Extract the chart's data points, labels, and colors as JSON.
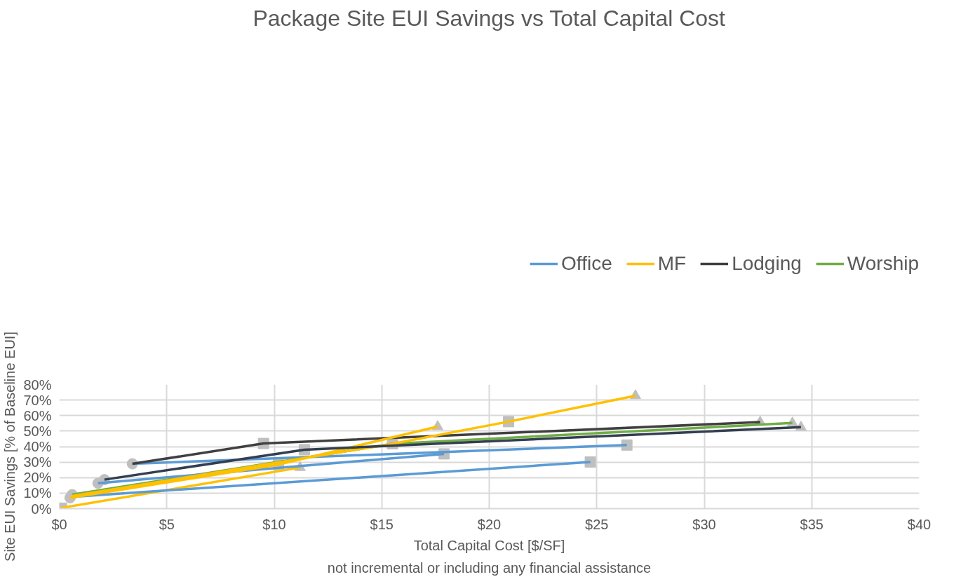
{
  "chart_data": {
    "type": "line",
    "title": "Package Site EUI Savings vs Total Capital Cost",
    "xlabel": "Total Capital Cost [$/SF]",
    "ylabel": "Site EUI Savings [% of Baseline EUI]",
    "annotations": [
      "not incremental or including any financial assistance"
    ],
    "xlim": [
      0,
      40
    ],
    "ylim": [
      0,
      80
    ],
    "xticks": [
      {
        "value": 0,
        "label": "$0"
      },
      {
        "value": 5,
        "label": "$5"
      },
      {
        "value": 10,
        "label": "$10"
      },
      {
        "value": 15,
        "label": "$15"
      },
      {
        "value": 20,
        "label": "$20"
      },
      {
        "value": 25,
        "label": "$25"
      },
      {
        "value": 30,
        "label": "$30"
      },
      {
        "value": 35,
        "label": "$35"
      },
      {
        "value": 40,
        "label": "$40"
      }
    ],
    "yticks": [
      {
        "value": 0,
        "label": "0%"
      },
      {
        "value": 10,
        "label": "10%"
      },
      {
        "value": 20,
        "label": "20%"
      },
      {
        "value": 30,
        "label": "30%"
      },
      {
        "value": 40,
        "label": "40%"
      },
      {
        "value": 50,
        "label": "50%"
      },
      {
        "value": 60,
        "label": "60%"
      },
      {
        "value": 70,
        "label": "70%"
      },
      {
        "value": 80,
        "label": "80%"
      }
    ],
    "grid": true,
    "legend": "top",
    "marker": "none",
    "line_style": "solid",
    "series": [
      {
        "name": "Office",
        "color": "#5b9bd5",
        "x": [
          3.4,
          26.4
        ],
        "values": [
          28.9,
          41.0
        ]
      },
      {
        "name": "MF",
        "color": "#ffc000",
        "x": [
          0.1,
          11.2
        ],
        "values": [
          0.5,
          26.5
        ]
      },
      {
        "name": "Lodging",
        "color": "#404040",
        "x": [
          3.4,
          9.5,
          32.6
        ],
        "values": [
          28.9,
          42.0,
          55.8
        ]
      },
      {
        "name": "Worship",
        "color": "#70ad47",
        "x": [
          0.6,
          15.5,
          34.1
        ],
        "values": [
          9.0,
          41.8,
          55.2
        ]
      },
      {
        "color": "#5b9bd5",
        "x": [
          1.8,
          17.9
        ],
        "values": [
          16.4,
          35.3
        ]
      },
      {
        "color": "#5b9bd5",
        "x": [
          0.6,
          24.7
        ],
        "values": [
          7.6,
          30.1
        ]
      },
      {
        "color": "#ffc000",
        "x": [
          0.5,
          10.2,
          17.6
        ],
        "values": [
          7.0,
          28.4,
          52.9
        ]
      },
      {
        "color": "#ffc000",
        "x": [
          0.6,
          15.5,
          20.9,
          26.8
        ],
        "values": [
          8.2,
          41.8,
          56.1,
          72.8
        ]
      },
      {
        "color": "#333f50",
        "x": [
          2.1,
          11.4,
          34.5
        ],
        "values": [
          18.7,
          38.0,
          52.5
        ]
      },
      {
        "type": "scatter",
        "marker": "circle",
        "color": "#bfbfbf",
        "x": [
          3.4,
          1.8,
          2.1,
          0.5,
          0.6
        ],
        "values": [
          28.9,
          16.4,
          18.7,
          7.0,
          9.0
        ]
      },
      {
        "type": "scatter",
        "marker": "square",
        "color": "#bfbfbf",
        "x": [
          26.4,
          17.9,
          24.7,
          9.5,
          11.4,
          15.5,
          10.2,
          20.9,
          0.1
        ],
        "values": [
          41.0,
          35.3,
          30.1,
          42.0,
          38.0,
          41.8,
          28.4,
          56.1,
          0.3
        ]
      },
      {
        "type": "scatter",
        "marker": "triangle",
        "color": "#bfbfbf",
        "x": [
          32.6,
          34.5,
          34.1,
          17.6,
          26.8,
          11.2
        ],
        "values": [
          55.8,
          52.5,
          55.2,
          52.9,
          72.8,
          26.5
        ]
      }
    ]
  }
}
